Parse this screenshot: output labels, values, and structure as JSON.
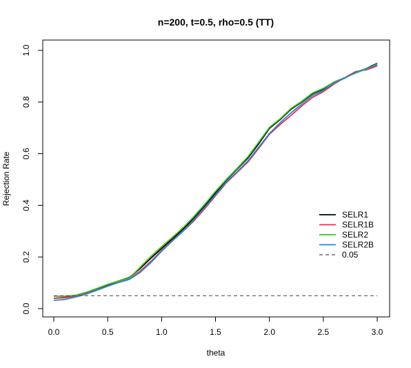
{
  "chart_data": {
    "type": "line",
    "title": "n=200, t=0.5, rho=0.5 (TT)",
    "xlabel": "theta",
    "ylabel": "Rejection Rate",
    "xlim": [
      0,
      3
    ],
    "ylim": [
      0,
      1
    ],
    "xticks": [
      "0.0",
      "0.5",
      "1.0",
      "1.5",
      "2.0",
      "2.5",
      "3.0"
    ],
    "yticks": [
      "0.0",
      "0.2",
      "0.4",
      "0.6",
      "0.8",
      "1.0"
    ],
    "legend_position": "right",
    "x": [
      0.0,
      0.1,
      0.2,
      0.3,
      0.4,
      0.5,
      0.6,
      0.7,
      0.8,
      0.9,
      1.0,
      1.1,
      1.2,
      1.3,
      1.4,
      1.5,
      1.6,
      1.7,
      1.8,
      1.9,
      2.0,
      2.1,
      2.2,
      2.3,
      2.4,
      2.5,
      2.6,
      2.7,
      2.8,
      2.9,
      3.0
    ],
    "series": [
      {
        "name": "SELR1",
        "color": "#000000",
        "dash": "solid",
        "values": [
          0.04,
          0.043,
          0.05,
          0.062,
          0.077,
          0.092,
          0.107,
          0.12,
          0.155,
          0.195,
          0.233,
          0.27,
          0.308,
          0.35,
          0.398,
          0.448,
          0.497,
          0.54,
          0.583,
          0.638,
          0.698,
          0.732,
          0.772,
          0.8,
          0.832,
          0.85,
          0.875,
          0.893,
          0.915,
          0.93,
          0.95
        ]
      },
      {
        "name": "SELR1B",
        "color": "#e3304f",
        "dash": "solid",
        "values": [
          0.04,
          0.042,
          0.048,
          0.058,
          0.072,
          0.088,
          0.102,
          0.115,
          0.145,
          0.183,
          0.225,
          0.264,
          0.3,
          0.34,
          0.387,
          0.437,
          0.487,
          0.527,
          0.567,
          0.62,
          0.675,
          0.713,
          0.748,
          0.785,
          0.818,
          0.84,
          0.87,
          0.895,
          0.918,
          0.925,
          0.94
        ]
      },
      {
        "name": "SELR2",
        "color": "#3fbf22",
        "dash": "solid",
        "values": [
          0.048,
          0.048,
          0.052,
          0.063,
          0.078,
          0.094,
          0.107,
          0.118,
          0.16,
          0.202,
          0.24,
          0.276,
          0.314,
          0.357,
          0.404,
          0.454,
          0.5,
          0.543,
          0.588,
          0.644,
          0.702,
          0.735,
          0.775,
          0.803,
          0.835,
          0.853,
          0.878,
          0.895,
          0.912,
          0.928,
          0.948
        ]
      },
      {
        "name": "SELR2B",
        "color": "#2e86c8",
        "dash": "solid",
        "values": [
          0.032,
          0.035,
          0.045,
          0.056,
          0.071,
          0.087,
          0.101,
          0.113,
          0.14,
          0.178,
          0.222,
          0.262,
          0.3,
          0.345,
          0.392,
          0.44,
          0.49,
          0.53,
          0.572,
          0.625,
          0.678,
          0.72,
          0.758,
          0.792,
          0.825,
          0.845,
          0.875,
          0.893,
          0.915,
          0.93,
          0.945
        ]
      },
      {
        "name": "0.05",
        "color": "#555555",
        "dash": "dashed",
        "values": [
          0.05,
          0.05,
          0.05,
          0.05,
          0.05,
          0.05,
          0.05,
          0.05,
          0.05,
          0.05,
          0.05,
          0.05,
          0.05,
          0.05,
          0.05,
          0.05,
          0.05,
          0.05,
          0.05,
          0.05,
          0.05,
          0.05,
          0.05,
          0.05,
          0.05,
          0.05,
          0.05,
          0.05,
          0.05,
          0.05,
          0.05
        ]
      }
    ]
  }
}
